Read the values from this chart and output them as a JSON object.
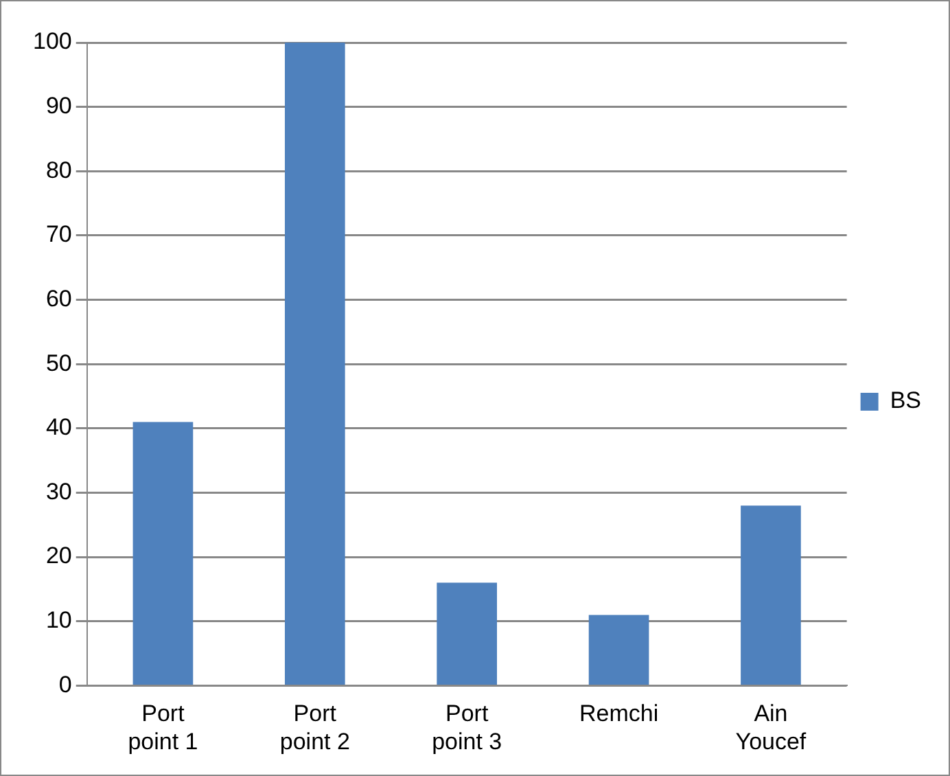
{
  "chart_data": {
    "type": "bar",
    "categories": [
      "Port point 1",
      "Port point 2",
      "Port point 3",
      "Remchi",
      "Ain Youcef"
    ],
    "series": [
      {
        "name": "BS",
        "color": "#4f81bd",
        "values": [
          41,
          100,
          16,
          11,
          28
        ]
      }
    ],
    "ylim": [
      0,
      100
    ],
    "yticks": [
      0,
      10,
      20,
      30,
      40,
      50,
      60,
      70,
      80,
      90,
      100
    ],
    "grid": "y",
    "legend": "right"
  }
}
